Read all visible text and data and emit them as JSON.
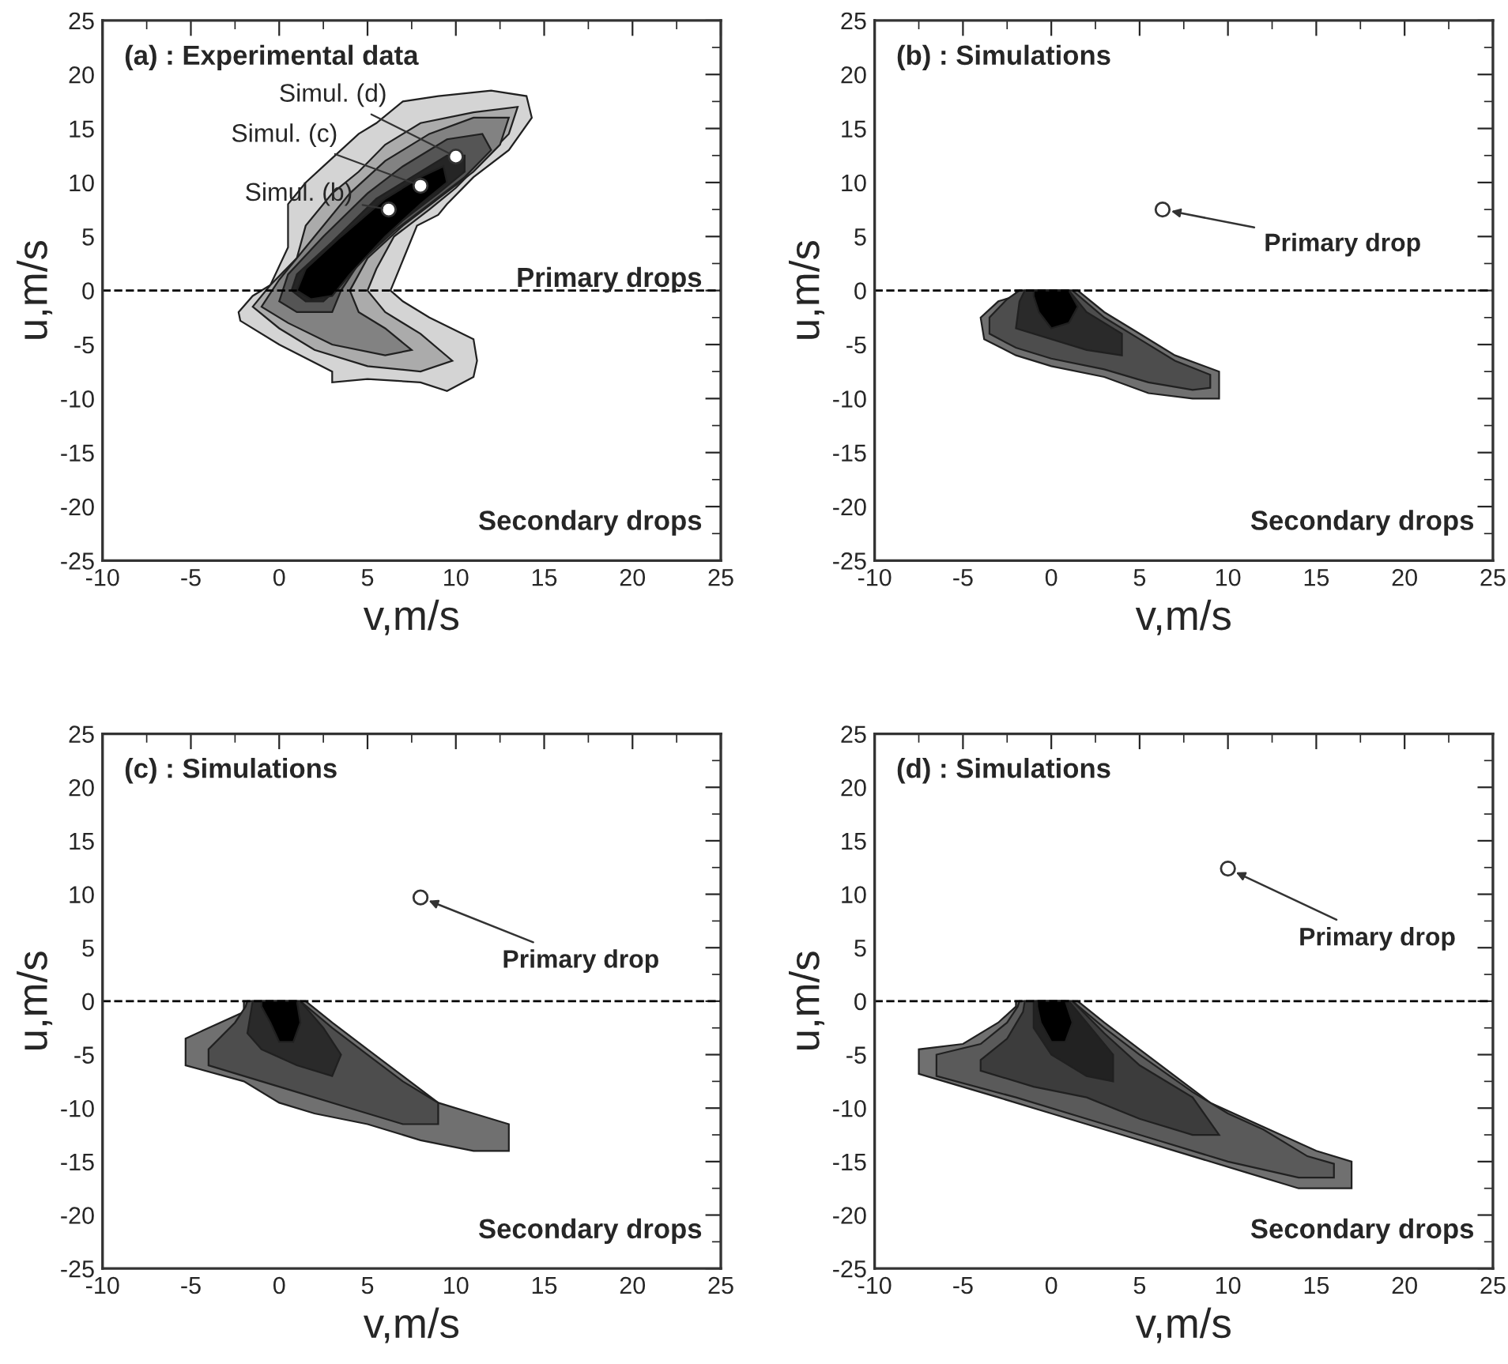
{
  "chart_data": [
    {
      "type": "area",
      "title": "(a) : Experimental data",
      "xlabel": "v,m/s",
      "ylabel": "u,m/s",
      "xlim": [
        -10,
        25
      ],
      "ylim": [
        -25,
        25
      ],
      "xticks": [
        -10,
        -5,
        0,
        5,
        10,
        15,
        20,
        25
      ],
      "yticks": [
        -25,
        -20,
        -15,
        -10,
        -5,
        0,
        5,
        10,
        15,
        20,
        25
      ],
      "grid": false,
      "ref_lines": [
        {
          "axis": "y",
          "value": 0,
          "line_style": "dashed",
          "color": "#000000"
        }
      ],
      "annotations": [
        {
          "text": "Simul. (b)",
          "x": 6.2,
          "y": 7.5
        },
        {
          "text": "Simul. (c)",
          "x": 8,
          "y": 9.7
        },
        {
          "text": "Simul. (d)",
          "x": 10,
          "y": 12.4
        },
        "Primary drops",
        "Secondary drops"
      ],
      "series": [
        {
          "type": "area",
          "color": "#d4d4d4",
          "x": [
            -2.3,
            -1.5,
            -0.5,
            0.5,
            0.5,
            1.5,
            2.5,
            4.5,
            5.5,
            7,
            9,
            12,
            14,
            14.3,
            13,
            11,
            9.5,
            9,
            7.8,
            6.8,
            6.3,
            7,
            8.5,
            11,
            11.2,
            11,
            9.5,
            8,
            5,
            3,
            3,
            0,
            -2.2
          ],
          "values": [
            -2,
            -0.5,
            0.5,
            4,
            8,
            10,
            11.5,
            14.5,
            15.5,
            17.5,
            18,
            18.5,
            18,
            16,
            13,
            10.5,
            8,
            7,
            6,
            2,
            0,
            -1,
            -2.5,
            -4.5,
            -6.5,
            -8,
            -9.3,
            -8.5,
            -8.2,
            -8.5,
            -7.5,
            -5,
            -2.8
          ]
        },
        {
          "type": "area",
          "color": "#ababab",
          "x": [
            -1.5,
            -0.5,
            1,
            1.5,
            3,
            4.5,
            6,
            8,
            11,
            13.5,
            13,
            11.5,
            10,
            8.5,
            6.5,
            5.5,
            5,
            6,
            8,
            9.8,
            8,
            5,
            2,
            0
          ],
          "values": [
            -1.5,
            0.5,
            3,
            6,
            9,
            11,
            13.5,
            15.5,
            16.5,
            17,
            14.5,
            12,
            9.5,
            7.5,
            5,
            2,
            0,
            -2,
            -4,
            -6.5,
            -7.5,
            -7,
            -5.5,
            -3.5
          ]
        },
        {
          "type": "area",
          "color": "#828282",
          "x": [
            -1,
            0,
            2,
            4,
            6,
            8.5,
            11,
            13,
            12.5,
            11,
            9,
            7,
            5,
            4,
            4.5,
            6,
            7.5,
            6,
            3,
            0.5
          ],
          "values": [
            -1.5,
            1,
            5,
            9,
            12,
            14.5,
            16,
            16,
            13.5,
            11,
            8.5,
            6,
            3,
            0,
            -2,
            -3.5,
            -5.5,
            -6,
            -5,
            -3
          ]
        },
        {
          "type": "area",
          "color": "#555555",
          "x": [
            0,
            0.5,
            2.5,
            5,
            7,
            9.5,
            11.5,
            12,
            10.5,
            8.5,
            6.5,
            4.5,
            3.5,
            3,
            1
          ],
          "values": [
            -1,
            1.5,
            5,
            9,
            11.5,
            14,
            14.5,
            13,
            10.5,
            8,
            5.5,
            2.5,
            0,
            -2,
            -2
          ]
        },
        {
          "type": "area",
          "color": "#252525",
          "x": [
            0.7,
            1,
            3,
            5.5,
            7.5,
            9.5,
            10.5,
            10.5,
            9,
            7,
            5,
            3.5,
            2.5,
            1.5
          ],
          "values": [
            0,
            1.5,
            4.5,
            8.5,
            10.5,
            12.5,
            12.5,
            11,
            9,
            6.5,
            3.5,
            0.5,
            -1,
            -1
          ]
        },
        {
          "type": "area",
          "color": "#000000",
          "x": [
            1,
            1.5,
            3.5,
            6,
            8,
            9.3,
            9.5,
            8,
            6,
            4,
            3,
            1.8
          ],
          "values": [
            0,
            2,
            5,
            8.5,
            10.5,
            11.5,
            10,
            8,
            5,
            1.5,
            -0.5,
            -0.8
          ]
        },
        {
          "type": "scatter",
          "color": "#ffffff",
          "marker": "circle",
          "x": [
            6.2,
            8,
            10
          ],
          "values": [
            7.5,
            9.7,
            12.4
          ]
        }
      ]
    },
    {
      "type": "area",
      "title": "(b) : Simulations",
      "xlabel": "v,m/s",
      "ylabel": "u,m/s",
      "xlim": [
        -10,
        25
      ],
      "ylim": [
        -25,
        25
      ],
      "xticks": [
        -10,
        -5,
        0,
        5,
        10,
        15,
        20,
        25
      ],
      "yticks": [
        -25,
        -20,
        -15,
        -10,
        -5,
        0,
        5,
        10,
        15,
        20,
        25
      ],
      "grid": false,
      "ref_lines": [
        {
          "axis": "y",
          "value": 0,
          "line_style": "dashed",
          "color": "#000000"
        }
      ],
      "annotations": [
        {
          "text": "Primary drop",
          "x": 6.3,
          "y": 7.5
        },
        "Secondary drops"
      ],
      "series": [
        {
          "type": "area",
          "color": "#707070",
          "x": [
            -2,
            1.5,
            3,
            5,
            7,
            9.5,
            9.5,
            8,
            5.5,
            3,
            0,
            -2,
            -3.8,
            -4,
            -3,
            -2
          ],
          "values": [
            0,
            0,
            -2,
            -4,
            -6,
            -7.5,
            -10,
            -10,
            -9.5,
            -8,
            -7,
            -6,
            -4.5,
            -2.5,
            -1,
            -0.5
          ]
        },
        {
          "type": "area",
          "color": "#4d4d4d",
          "x": [
            -1.8,
            1.2,
            3,
            5,
            7,
            9,
            9,
            8,
            5.5,
            3,
            0,
            -2,
            -3.5,
            -3.5,
            -2.5
          ],
          "values": [
            0,
            0,
            -2.5,
            -4.5,
            -6.5,
            -7.8,
            -9,
            -9.2,
            -8.5,
            -7.3,
            -6.3,
            -5.3,
            -4,
            -2.5,
            -0.8
          ]
        },
        {
          "type": "area",
          "color": "#2a2a2a",
          "x": [
            -1.5,
            1,
            2,
            4,
            4,
            2,
            0,
            -2,
            -1.8
          ],
          "values": [
            0,
            0,
            -2,
            -4,
            -6,
            -5.5,
            -4.5,
            -3.5,
            -1
          ]
        },
        {
          "type": "area",
          "color": "#000000",
          "x": [
            -1,
            1,
            1.5,
            1,
            0,
            -0.7,
            -1
          ],
          "values": [
            0,
            0,
            -1.5,
            -3,
            -3.5,
            -2,
            -0.5
          ]
        },
        {
          "type": "scatter",
          "color": "#ffffff",
          "marker": "circle",
          "x": [
            6.3
          ],
          "values": [
            7.5
          ]
        }
      ]
    },
    {
      "type": "area",
      "title": "(c) : Simulations",
      "xlabel": "v,m/s",
      "ylabel": "u,m/s",
      "xlim": [
        -10,
        25
      ],
      "ylim": [
        -25,
        25
      ],
      "xticks": [
        -10,
        -5,
        0,
        5,
        10,
        15,
        20,
        25
      ],
      "yticks": [
        -25,
        -20,
        -15,
        -10,
        -5,
        0,
        5,
        10,
        15,
        20,
        25
      ],
      "grid": false,
      "ref_lines": [
        {
          "axis": "y",
          "value": 0,
          "line_style": "dashed",
          "color": "#000000"
        }
      ],
      "annotations": [
        {
          "text": "Primary drop",
          "x": 8,
          "y": 9.7
        },
        "Secondary drops"
      ],
      "series": [
        {
          "type": "area",
          "color": "#707070",
          "x": [
            -2,
            1.5,
            3,
            5,
            7,
            9,
            11,
            13,
            13,
            11,
            8,
            5,
            2,
            0,
            -2,
            -5.3,
            -5.3,
            -4,
            -2
          ],
          "values": [
            0,
            0,
            -2,
            -4.5,
            -7,
            -9.5,
            -10.5,
            -11.5,
            -14,
            -14,
            -13,
            -11.5,
            -10.5,
            -9.5,
            -7.5,
            -6,
            -3.5,
            -2.5,
            -1
          ]
        },
        {
          "type": "area",
          "color": "#4d4d4d",
          "x": [
            -1.8,
            1.2,
            3,
            5,
            7,
            9,
            9,
            7,
            4,
            1,
            -2,
            -4,
            -4,
            -2.5,
            -1.9
          ],
          "values": [
            0,
            0,
            -2.5,
            -5,
            -7.5,
            -9.5,
            -11.5,
            -11.5,
            -10,
            -8.5,
            -7,
            -6,
            -4.5,
            -2,
            -0.5
          ]
        },
        {
          "type": "area",
          "color": "#2a2a2a",
          "x": [
            -1.5,
            1.2,
            2.5,
            3.5,
            3,
            1,
            -1,
            -1.8,
            -1.6
          ],
          "values": [
            0,
            0,
            -2.5,
            -5,
            -7,
            -6,
            -4.5,
            -3,
            -1
          ]
        },
        {
          "type": "area",
          "color": "#000000",
          "x": [
            -1,
            1,
            1.2,
            0.8,
            0,
            -0.5,
            -1
          ],
          "values": [
            0,
            0,
            -2,
            -3.8,
            -3.8,
            -2,
            -0.5
          ]
        },
        {
          "type": "scatter",
          "color": "#ffffff",
          "marker": "circle",
          "x": [
            8
          ],
          "values": [
            9.7
          ]
        }
      ]
    },
    {
      "type": "area",
      "title": "(d) : Simulations",
      "xlabel": "v,m/s",
      "ylabel": "u,m/s",
      "xlim": [
        -10,
        25
      ],
      "ylim": [
        -25,
        25
      ],
      "xticks": [
        -10,
        -5,
        0,
        5,
        10,
        15,
        20,
        25
      ],
      "yticks": [
        -25,
        -20,
        -15,
        -10,
        -5,
        0,
        5,
        10,
        15,
        20,
        25
      ],
      "grid": false,
      "ref_lines": [
        {
          "axis": "y",
          "value": 0,
          "line_style": "dashed",
          "color": "#000000"
        }
      ],
      "annotations": [
        {
          "text": "Primary drop",
          "x": 10,
          "y": 12.4
        },
        "Secondary drops"
      ],
      "series": [
        {
          "type": "area",
          "color": "#707070",
          "x": [
            -2,
            1.5,
            3,
            5,
            7,
            9,
            11,
            13,
            15,
            17,
            17,
            14,
            11,
            7,
            4,
            0,
            -3,
            -7.5,
            -7.5,
            -5,
            -3,
            -2
          ],
          "values": [
            0,
            0,
            -2,
            -4.5,
            -7,
            -9.5,
            -11,
            -12.5,
            -14,
            -15,
            -17.5,
            -17.5,
            -16,
            -14,
            -12.5,
            -10.5,
            -9,
            -6.8,
            -4.5,
            -4,
            -2,
            -0.5
          ]
        },
        {
          "type": "area",
          "color": "#5a5a5a",
          "x": [
            -1.8,
            1.2,
            3,
            5,
            8,
            10,
            12,
            14.5,
            16,
            16,
            14,
            10,
            6,
            2,
            -2,
            -6.5,
            -6.5,
            -4,
            -2.5,
            -1.9
          ],
          "values": [
            0,
            0,
            -2.5,
            -5,
            -8.5,
            -10.5,
            -12,
            -14.5,
            -15.2,
            -16.5,
            -16.5,
            -15,
            -13,
            -11,
            -9,
            -7,
            -5,
            -4,
            -2,
            -0.5
          ]
        },
        {
          "type": "area",
          "color": "#3c3c3c",
          "x": [
            -1.5,
            1.2,
            3,
            5,
            8,
            9.5,
            8,
            5,
            2,
            -1,
            -4,
            -4,
            -2.5,
            -1.6
          ],
          "values": [
            0,
            0,
            -3,
            -6,
            -9,
            -12.5,
            -12.5,
            -11,
            -9,
            -8,
            -6.5,
            -5.5,
            -3.5,
            -1
          ]
        },
        {
          "type": "area",
          "color": "#222222",
          "x": [
            -1,
            1,
            2,
            3.5,
            3.5,
            2,
            0,
            -1
          ],
          "values": [
            0,
            0,
            -2,
            -5,
            -7.5,
            -7,
            -5,
            -2.5
          ]
        },
        {
          "type": "area",
          "color": "#000000",
          "x": [
            -0.8,
            0.8,
            1.2,
            0.8,
            0,
            -0.6,
            -0.8
          ],
          "values": [
            0,
            0,
            -2,
            -3.8,
            -3.8,
            -2,
            -0.5
          ]
        },
        {
          "type": "scatter",
          "color": "#ffffff",
          "marker": "circle",
          "x": [
            10
          ],
          "values": [
            12.4
          ]
        }
      ]
    }
  ]
}
